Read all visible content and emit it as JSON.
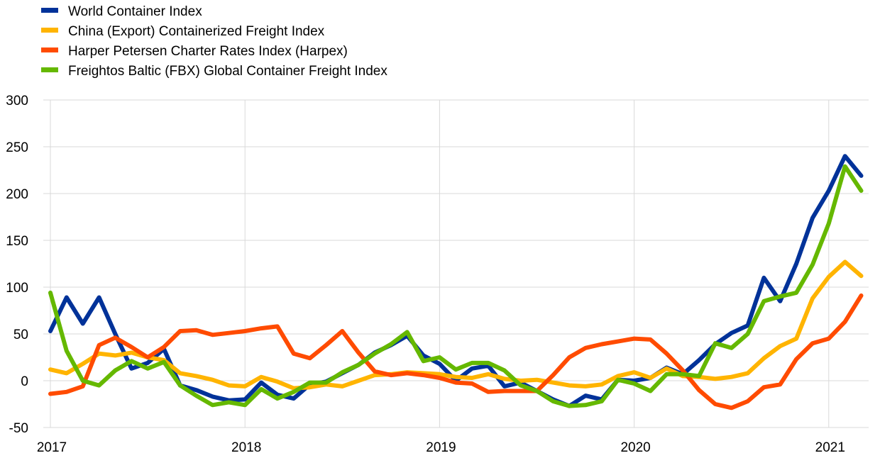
{
  "chart_data": {
    "type": "line",
    "title": "",
    "xlabel": "",
    "ylabel": "",
    "ylim": [
      -50,
      300
    ],
    "yticks": [
      300,
      250,
      200,
      150,
      100,
      50,
      0,
      -50
    ],
    "xticks": [
      "2017",
      "2018",
      "2019",
      "2020",
      "2021"
    ],
    "grid": true,
    "legend": "top-left",
    "x": [
      "2017-01",
      "2017-02",
      "2017-03",
      "2017-04",
      "2017-05",
      "2017-06",
      "2017-07",
      "2017-08",
      "2017-09",
      "2017-10",
      "2017-11",
      "2017-12",
      "2018-01",
      "2018-02",
      "2018-03",
      "2018-04",
      "2018-05",
      "2018-06",
      "2018-07",
      "2018-08",
      "2018-09",
      "2018-10",
      "2018-11",
      "2018-12",
      "2019-01",
      "2019-02",
      "2019-03",
      "2019-04",
      "2019-05",
      "2019-06",
      "2019-07",
      "2019-08",
      "2019-09",
      "2019-10",
      "2019-11",
      "2019-12",
      "2020-01",
      "2020-02",
      "2020-03",
      "2020-04",
      "2020-05",
      "2020-06",
      "2020-07",
      "2020-08",
      "2020-09",
      "2020-10",
      "2020-11",
      "2020-12",
      "2021-01",
      "2021-02",
      "2021-03"
    ],
    "series": [
      {
        "name": "World Container Index",
        "color": "#003299",
        "values": [
          53,
          89,
          61,
          89,
          50,
          13,
          19,
          34,
          -5,
          -10,
          -17,
          -21,
          -20,
          -2,
          -15,
          -19,
          -4,
          -1,
          8,
          17,
          30,
          38,
          48,
          27,
          18,
          0,
          13,
          16,
          -6,
          -2,
          -11,
          -20,
          -27,
          -16,
          -20,
          1,
          0,
          3,
          14,
          7,
          22,
          39,
          51,
          59,
          110,
          85,
          125,
          174,
          203,
          240,
          219
        ]
      },
      {
        "name": "China (Export) Containerized Freight Index",
        "color": "#ffb400",
        "values": [
          12,
          8,
          18,
          29,
          27,
          30,
          25,
          22,
          8,
          5,
          1,
          -5,
          -6,
          4,
          -1,
          -8,
          -7,
          -4,
          -6,
          0,
          6,
          7,
          9,
          8,
          7,
          4,
          3,
          7,
          2,
          0,
          1,
          -2,
          -5,
          -6,
          -4,
          5,
          9,
          3,
          13,
          5,
          4,
          2,
          4,
          8,
          24,
          37,
          45,
          88,
          111,
          127,
          112
        ]
      },
      {
        "name": "Harper Petersen Charter Rates Index (Harpex)",
        "color": "#ff4b00",
        "values": [
          -14,
          -12,
          -6,
          38,
          46,
          36,
          25,
          36,
          53,
          54,
          49,
          51,
          53,
          56,
          58,
          29,
          24,
          38,
          53,
          30,
          10,
          6,
          8,
          6,
          3,
          -2,
          -3,
          -12,
          -11,
          -11,
          -11,
          6,
          25,
          35,
          39,
          42,
          45,
          44,
          29,
          11,
          -10,
          -25,
          -29,
          -22,
          -7,
          -4,
          23,
          40,
          45,
          63,
          91
        ]
      },
      {
        "name": "Freightos Baltic (FBX) Global Container Freight Index",
        "color": "#65b800",
        "values": [
          94,
          32,
          0,
          -5,
          11,
          21,
          13,
          20,
          -5,
          -16,
          -26,
          -23,
          -26,
          -9,
          -19,
          -12,
          -2,
          -2,
          9,
          17,
          29,
          39,
          52,
          21,
          25,
          12,
          19,
          19,
          11,
          -5,
          -11,
          -22,
          -27,
          -26,
          -22,
          1,
          -3,
          -11,
          7,
          7,
          5,
          40,
          35,
          50,
          85,
          90,
          94,
          124,
          168,
          229,
          203
        ]
      }
    ]
  }
}
